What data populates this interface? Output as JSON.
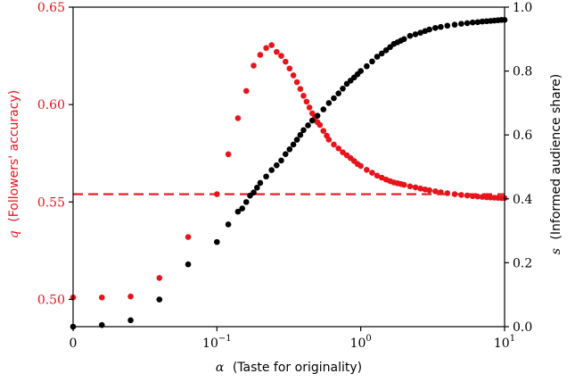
{
  "chart_data": {
    "type": "scatter",
    "x_scale": "symlog",
    "xlim": [
      0,
      10
    ],
    "ylim_left": [
      0.486,
      0.65
    ],
    "ylim_right": [
      0,
      1.0
    ],
    "xlabel": {
      "symbol": "α",
      "text": "(Taste for originality)"
    },
    "ylabel_left": {
      "symbol": "q",
      "text": "(Followers' accuracy)"
    },
    "ylabel_right": {
      "symbol": "s",
      "text": "(Informed audience share)"
    },
    "x_ticks": [
      {
        "value": 0,
        "label": "0"
      },
      {
        "value": 0.1,
        "label": "10",
        "exp": "−1"
      },
      {
        "value": 1,
        "label": "10",
        "exp": "0"
      },
      {
        "value": 10,
        "label": "10",
        "exp": "1"
      }
    ],
    "y_ticks_left": [
      "0.50",
      "0.55",
      "0.60",
      "0.65"
    ],
    "y_ticks_right": [
      "0.0",
      "0.2",
      "0.4",
      "0.6",
      "0.8",
      "1.0"
    ],
    "colors": {
      "q": "#e8141c",
      "s": "#000000",
      "axes": "#000000"
    },
    "hline": {
      "value": 0.554,
      "style": "dashed",
      "color": "#e8141c"
    },
    "series": [
      {
        "axis": "left",
        "color": "#e8141c",
        "x": [
          0,
          0.02,
          0.04,
          0.06,
          0.08,
          0.1,
          0.12,
          0.14,
          0.16,
          0.18,
          0.2,
          0.22,
          0.24,
          0.26,
          0.28,
          0.3,
          0.32,
          0.34,
          0.36,
          0.38,
          0.4,
          0.42,
          0.44,
          0.46,
          0.48,
          0.5,
          0.52,
          0.55,
          0.58,
          0.6,
          0.65,
          0.7,
          0.75,
          0.8,
          0.85,
          0.9,
          0.95,
          1,
          1.1,
          1.2,
          1.3,
          1.4,
          1.5,
          1.6,
          1.7,
          1.8,
          1.9,
          2,
          2.2,
          2.4,
          2.6,
          2.8,
          3,
          3.3,
          3.6,
          4,
          4.5,
          5,
          5.5,
          6,
          6.5,
          7,
          7.5,
          8,
          8.5,
          9,
          9.5,
          10
        ],
        "y": [
          0.501,
          0.501,
          0.5015,
          0.511,
          0.532,
          0.554,
          0.5745,
          0.593,
          0.607,
          0.62,
          0.6255,
          0.629,
          0.6305,
          0.627,
          0.625,
          0.622,
          0.6185,
          0.615,
          0.6115,
          0.608,
          0.6045,
          0.6015,
          0.5985,
          0.5955,
          0.5935,
          0.591,
          0.5895,
          0.5865,
          0.584,
          0.582,
          0.5795,
          0.5775,
          0.5755,
          0.574,
          0.5725,
          0.571,
          0.5695,
          0.5685,
          0.5665,
          0.565,
          0.5635,
          0.5625,
          0.5615,
          0.5607,
          0.56,
          0.5596,
          0.5592,
          0.5588,
          0.558,
          0.5575,
          0.5569,
          0.5564,
          0.556,
          0.5555,
          0.555,
          0.5545,
          0.554,
          0.5536,
          0.5533,
          0.553,
          0.5528,
          0.5526,
          0.5524,
          0.5523,
          0.5522,
          0.5521,
          0.552,
          0.552
        ]
      },
      {
        "axis": "right",
        "color": "#000000",
        "x": [
          0,
          0.02,
          0.04,
          0.06,
          0.08,
          0.1,
          0.12,
          0.14,
          0.15,
          0.16,
          0.17,
          0.18,
          0.19,
          0.2,
          0.22,
          0.24,
          0.26,
          0.28,
          0.3,
          0.32,
          0.34,
          0.36,
          0.38,
          0.4,
          0.43,
          0.46,
          0.5,
          0.55,
          0.6,
          0.65,
          0.7,
          0.75,
          0.8,
          0.85,
          0.9,
          0.95,
          1,
          1.1,
          1.2,
          1.3,
          1.4,
          1.5,
          1.6,
          1.7,
          1.8,
          1.9,
          2,
          2.2,
          2.4,
          2.6,
          2.8,
          3,
          3.3,
          3.6,
          4,
          4.5,
          5,
          5.5,
          6,
          6.5,
          7,
          7.5,
          8,
          8.5,
          9,
          9.5,
          10
        ],
        "y": [
          0.0,
          0.005,
          0.02,
          0.085,
          0.195,
          0.265,
          0.32,
          0.36,
          0.37,
          0.39,
          0.41,
          0.42,
          0.435,
          0.45,
          0.47,
          0.49,
          0.505,
          0.52,
          0.54,
          0.555,
          0.57,
          0.585,
          0.6,
          0.615,
          0.63,
          0.645,
          0.66,
          0.68,
          0.7,
          0.715,
          0.73,
          0.745,
          0.76,
          0.77,
          0.78,
          0.79,
          0.8,
          0.815,
          0.83,
          0.845,
          0.855,
          0.865,
          0.875,
          0.885,
          0.89,
          0.895,
          0.9,
          0.91,
          0.915,
          0.92,
          0.925,
          0.93,
          0.935,
          0.938,
          0.942,
          0.945,
          0.948,
          0.95,
          0.952,
          0.953,
          0.955,
          0.956,
          0.957,
          0.958,
          0.959,
          0.96,
          0.96
        ]
      }
    ]
  }
}
